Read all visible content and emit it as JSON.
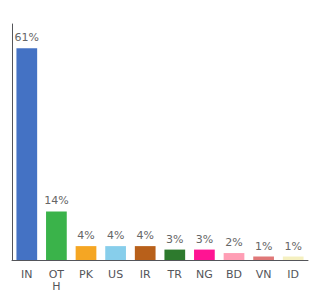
{
  "chart_data": {
    "type": "bar",
    "categories": [
      "IN",
      "OT\nH",
      "PK",
      "US",
      "IR",
      "TR",
      "NG",
      "BD",
      "VN",
      "ID"
    ],
    "values": [
      61,
      14,
      4,
      4,
      4,
      3,
      3,
      2,
      1,
      1
    ],
    "value_labels": [
      "61%",
      "14%",
      "4%",
      "4%",
      "4%",
      "3%",
      "3%",
      "2%",
      "1%",
      "1%"
    ],
    "colors": [
      "#4472c4",
      "#3ab34a",
      "#f5a623",
      "#87ceeb",
      "#b8601a",
      "#2d7a2d",
      "#ff1493",
      "#ff9eb5",
      "#e07878",
      "#f5f0c0"
    ],
    "ylim": [
      0,
      68
    ],
    "data_labels": true,
    "tick_labels": "x",
    "grid": false
  }
}
